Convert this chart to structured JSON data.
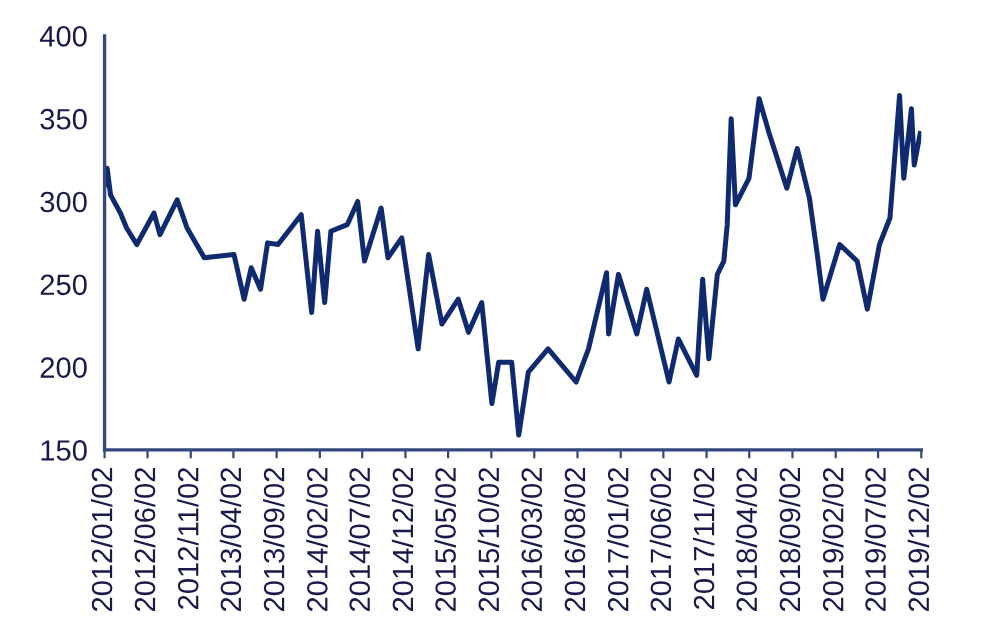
{
  "chart_data": {
    "type": "line",
    "color": "#0f2a6e",
    "grid": false,
    "legend": false,
    "marker": "none",
    "line_style": "solid",
    "x": [
      "2012-01-02",
      "2012-01-11",
      "2012-01-23",
      "2012-02-27",
      "2012-03-20",
      "2012-04-25",
      "2012-06-25",
      "2012-07-16",
      "2012-09-15",
      "2012-10-20",
      "2012-12-20",
      "2013-04-04",
      "2013-05-10",
      "2013-06-04",
      "2013-07-07",
      "2013-08-01",
      "2013-09-07",
      "2013-11-28",
      "2014-01-04",
      "2014-01-25",
      "2014-02-19",
      "2014-03-13",
      "2014-05-10",
      "2014-06-16",
      "2014-07-10",
      "2014-09-07",
      "2014-10-01",
      "2014-11-19",
      "2015-01-16",
      "2015-02-22",
      "2015-04-10",
      "2015-06-07",
      "2015-07-13",
      "2015-08-29",
      "2015-10-04",
      "2015-10-28",
      "2015-12-13",
      "2016-01-07",
      "2016-02-10",
      "2016-04-20",
      "2016-07-28",
      "2016-09-10",
      "2016-11-13",
      "2016-11-20",
      "2016-12-25",
      "2017-02-28",
      "2017-04-04",
      "2017-06-22",
      "2017-07-25",
      "2017-09-28",
      "2017-10-19",
      "2017-11-10",
      "2017-12-10",
      "2018-01-02",
      "2018-01-14",
      "2018-01-28",
      "2018-02-12",
      "2018-04-01",
      "2018-05-07",
      "2018-06-10",
      "2018-08-13",
      "2018-09-19",
      "2018-11-01",
      "2018-11-28",
      "2018-12-19",
      "2019-02-16",
      "2019-04-19",
      "2019-05-25",
      "2019-07-07",
      "2019-08-13",
      "2019-09-16",
      "2019-10-01",
      "2019-10-28",
      "2019-11-07",
      "2019-11-28"
    ],
    "values": [
      310,
      320,
      304,
      293,
      284,
      274,
      293,
      280,
      301,
      284,
      266,
      268,
      241,
      260,
      247,
      275,
      274,
      292,
      233,
      282,
      239,
      282,
      286,
      300,
      264,
      296,
      266,
      278,
      211,
      268,
      226,
      241,
      221,
      239,
      178,
      203,
      203,
      159,
      197,
      211,
      191,
      211,
      257,
      220,
      256,
      220,
      247,
      191,
      217,
      195,
      253,
      205,
      256,
      264,
      286,
      350,
      298,
      314,
      362,
      342,
      308,
      332,
      302,
      269,
      241,
      274,
      264,
      235,
      274,
      290,
      364,
      314,
      356,
      322,
      341
    ],
    "ylim": [
      150,
      400
    ],
    "yticks": [
      150,
      200,
      250,
      300,
      350,
      400
    ],
    "xlim": [
      "2012-01-02",
      "2019-12-02"
    ],
    "xticks": [
      {
        "value": "2012-01-02",
        "label": "2012/01/02"
      },
      {
        "value": "2012-06-02",
        "label": "2012/06/02"
      },
      {
        "value": "2012-11-02",
        "label": "2012/11/02"
      },
      {
        "value": "2013-04-02",
        "label": "2013/04/02"
      },
      {
        "value": "2013-09-02",
        "label": "2013/09/02"
      },
      {
        "value": "2014-02-02",
        "label": "2014/02/02"
      },
      {
        "value": "2014-07-02",
        "label": "2014/07/02"
      },
      {
        "value": "2014-12-02",
        "label": "2014/12/02"
      },
      {
        "value": "2015-05-02",
        "label": "2015/05/02"
      },
      {
        "value": "2015-10-02",
        "label": "2015/10/02"
      },
      {
        "value": "2016-03-02",
        "label": "2016/03/02"
      },
      {
        "value": "2016-08-02",
        "label": "2016/08/02"
      },
      {
        "value": "2017-01-02",
        "label": "2017/01/02"
      },
      {
        "value": "2017-06-02",
        "label": "2017/06/02"
      },
      {
        "value": "2017-11-02",
        "label": "2017/11/02"
      },
      {
        "value": "2018-04-02",
        "label": "2018/04/02"
      },
      {
        "value": "2018-09-02",
        "label": "2018/09/02"
      },
      {
        "value": "2019-02-02",
        "label": "2019/02/02"
      },
      {
        "value": "2019-07-02",
        "label": "2019/07/02"
      },
      {
        "value": "2019-12-02",
        "label": "2019/12/02"
      }
    ]
  }
}
